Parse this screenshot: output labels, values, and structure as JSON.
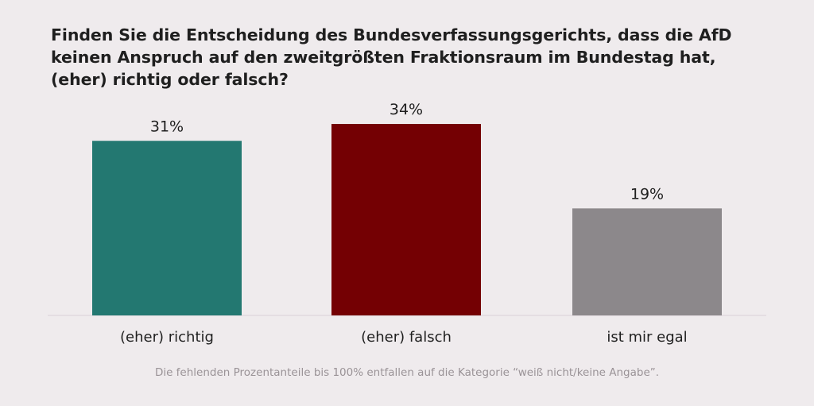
{
  "title": "Finden Sie die Entscheidung des Bundesverfassungsgerichts, dass die AfD keinen Anspruch auf den zweitgrößten Fraktionsraum im Bundestag hat, (eher) richtig oder falsch?",
  "footnote": "Die fehlenden Prozentanteile bis 100% entfallen auf die Kategorie “weiß nicht/keine Angabe”.",
  "chart_data": {
    "type": "bar",
    "title": "Finden Sie die Entscheidung des Bundesverfassungsgerichts, dass die AfD keinen Anspruch auf den zweitgrößten Fraktionsraum im Bundestag hat, (eher) richtig oder falsch?",
    "categories": [
      "(eher) richtig",
      "(eher) falsch",
      "ist mir egal"
    ],
    "values": [
      31,
      34,
      19
    ],
    "data_labels": [
      "31%",
      "34%",
      "19%"
    ],
    "colors": [
      "#237871",
      "#740003",
      "#8c888b"
    ],
    "xlabel": "",
    "ylabel": "",
    "ylim": [
      0,
      34
    ],
    "grid": false,
    "legend": "none"
  }
}
